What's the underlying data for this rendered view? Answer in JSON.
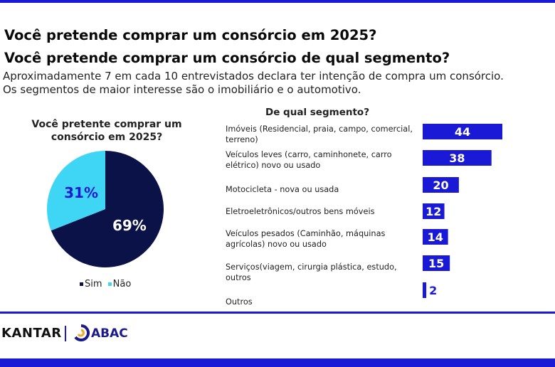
{
  "titles": {
    "line1": "Você pretende comprar um consórcio em 2025?",
    "line2": "Você pretende comprar um consórcio de qual segmento?"
  },
  "intro": {
    "line1": "Aproximadamente 7 em cada 10 entrevistados declara ter intenção de compra um consórcio.",
    "line2": "Os segmentos de maior interesse são o imobiliário e o automotivo."
  },
  "colors": {
    "dark_navy": "#0b1248",
    "light_blue": "#3fd6f5",
    "bar_blue": "#1a1ad6",
    "accent_blue": "#1a1ad6"
  },
  "footer": {
    "kantar": "KANTAR",
    "abac": "ABAC",
    "abac_icon": "abac-logo-icon"
  },
  "chart_data": [
    {
      "type": "pie",
      "title": "Você pretente comprar um consórcio em 2025?",
      "slices": [
        {
          "name": "Sim",
          "value": 69,
          "label": "69%",
          "color": "#0b1248"
        },
        {
          "name": "Não",
          "value": 31,
          "label": "31%",
          "color": "#3fd6f5"
        }
      ],
      "legend": [
        "Sim",
        "Não"
      ],
      "legend_placement": "bottom"
    },
    {
      "type": "bar",
      "orientation": "horizontal",
      "title": "De qual segmento?",
      "categories": [
        "Imóveis (Residencial, praia, campo, comercial, terreno)",
        "Veículos leves (carro, caminhonete, carro elétrico) novo ou usado",
        "Motocicleta - nova ou usada",
        "Eletroeletrônicos/outros bens móveis",
        "Veículos pesados (Caminhão, máquinas agrícolas) novo ou usado",
        "Serviços(viagem, cirurgia plástica, estudo, outros",
        "Outros"
      ],
      "values": [
        44,
        38,
        20,
        12,
        14,
        15,
        2
      ],
      "value_labels": [
        "44",
        "38",
        "20",
        "12",
        "14",
        "15",
        "2"
      ],
      "grid": false
    }
  ]
}
